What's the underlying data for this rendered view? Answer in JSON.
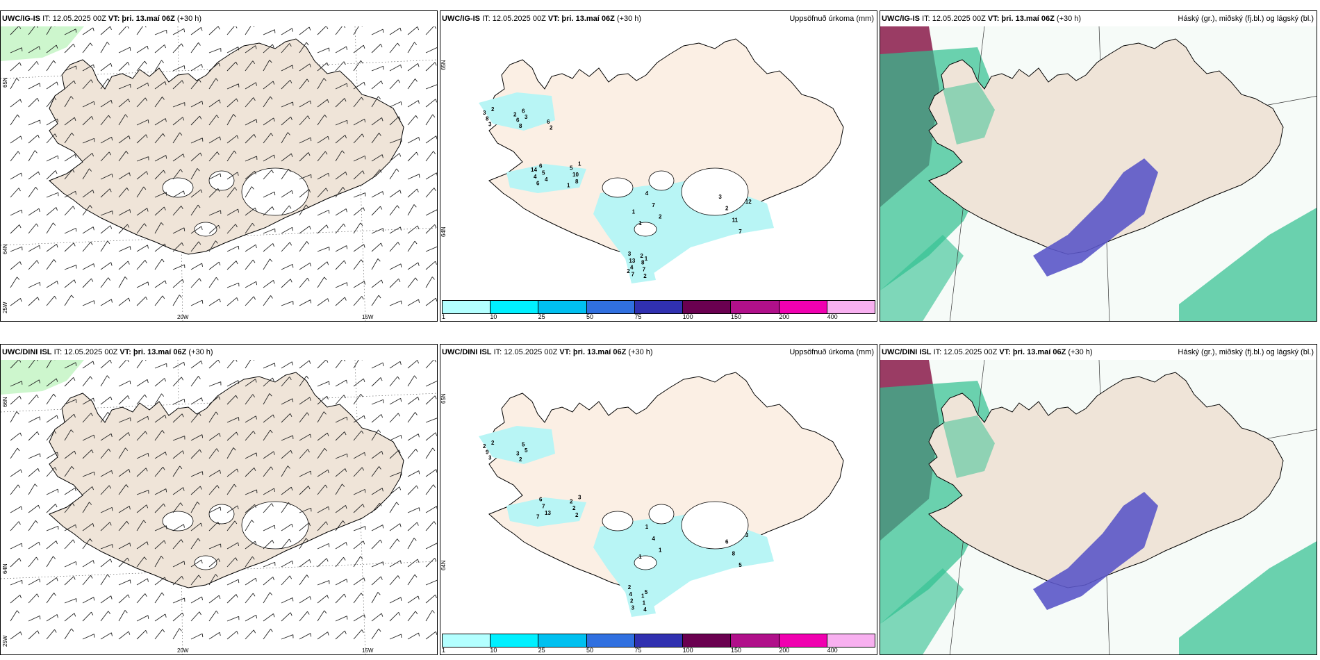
{
  "panels": [
    {
      "id": "p1",
      "model": "UWC/IG-IS",
      "it": "IT: 12.05.2025 00Z",
      "vt": "VT: þri. 13.maí 06Z",
      "lead": "(+30 h)",
      "right_label": "",
      "type": "wind",
      "lat_labels": [
        "65N",
        "64N",
        "25W"
      ],
      "lon_labels": [
        "20W",
        "15W"
      ]
    },
    {
      "id": "p2",
      "model": "UWC/IG-IS",
      "it": "IT: 12.05.2025 00Z",
      "vt": "VT: þri. 13.maí 06Z",
      "lead": "(+30 h)",
      "right_label": "Uppsöfnuð úrkoma (mm)",
      "type": "precip",
      "lat_labels": [
        "65N",
        "64N"
      ],
      "lon_labels": [],
      "values": [
        "2",
        "4",
        "12",
        "7",
        "3",
        "1",
        "2",
        "1",
        "3",
        "5",
        "7",
        "4",
        "6",
        "8",
        "7",
        "2",
        "8",
        "6",
        "11",
        "13",
        "8",
        "10",
        "4",
        "7",
        "3",
        "6",
        "2",
        "3",
        "6",
        "5",
        "1",
        "8",
        "2",
        "4",
        "3",
        "2",
        "2",
        "1",
        "1",
        "2",
        "6",
        "14"
      ]
    },
    {
      "id": "p3",
      "model": "UWC/IG-IS",
      "it": "IT: 12.05.2025 00Z",
      "vt": "VT: þri. 13.maí 06Z",
      "lead": "(+30 h)",
      "right_label": "Háský (gr.), miðský (fj.bl.) og lágský (bl.)",
      "type": "cloud",
      "lat_labels": [],
      "lon_labels": []
    },
    {
      "id": "p4",
      "model": "UWC/DINI ISL",
      "it": "IT: 12.05.2025 00Z",
      "vt": "VT: þri. 13.maí 06Z",
      "lead": "(+30 h)",
      "right_label": "",
      "type": "wind",
      "lat_labels": [
        "66N",
        "64N",
        "25W"
      ],
      "lon_labels": [
        "20W",
        "15W"
      ]
    },
    {
      "id": "p5",
      "model": "UWC/DINI ISL",
      "it": "IT: 12.05.2025 00Z",
      "vt": "VT: þri. 13.maí 06Z",
      "lead": "(+30 h)",
      "right_label": "Uppsöfnuð úrkoma (mm)",
      "type": "precip",
      "lat_labels": [
        "65N",
        "64N"
      ],
      "lon_labels": [],
      "values": [
        "2",
        "13",
        "3",
        "3",
        "5",
        "3",
        "1",
        "5",
        "3",
        "7",
        "5",
        "2",
        "5",
        "2",
        "4",
        "4",
        "9",
        "6",
        "8",
        "4",
        "2",
        "2",
        "1",
        "1",
        "2",
        "7",
        "6",
        "2",
        "3",
        "2",
        "1",
        "1"
      ]
    },
    {
      "id": "p6",
      "model": "UWC/DINI ISL",
      "it": "IT: 12.05.2025 00Z",
      "vt": "VT: þri. 13.maí 06Z",
      "lead": "(+30 h)",
      "right_label": "Háský (gr.), miðský (fj.bl.) og lágský (bl.)",
      "type": "cloud",
      "lat_labels": [],
      "lon_labels": []
    }
  ],
  "legend": {
    "ticks": [
      "1",
      "10",
      "25",
      "50",
      "75",
      "100",
      "150",
      "200",
      "400"
    ],
    "colors": [
      "#b3ffff",
      "#00f0ff",
      "#00c0f0",
      "#3070e0",
      "#3030b0",
      "#6a0050",
      "#b0108a",
      "#f000b0",
      "#f8b0f0"
    ]
  },
  "colors": {
    "land": "#efe4d8",
    "land_precip": "#fbefe4",
    "rain": "#b8f5f5",
    "low_cloud": "#2fbf8f",
    "mid_cloud": "#5b57c8",
    "high_cloud": "#8a1a4a"
  }
}
